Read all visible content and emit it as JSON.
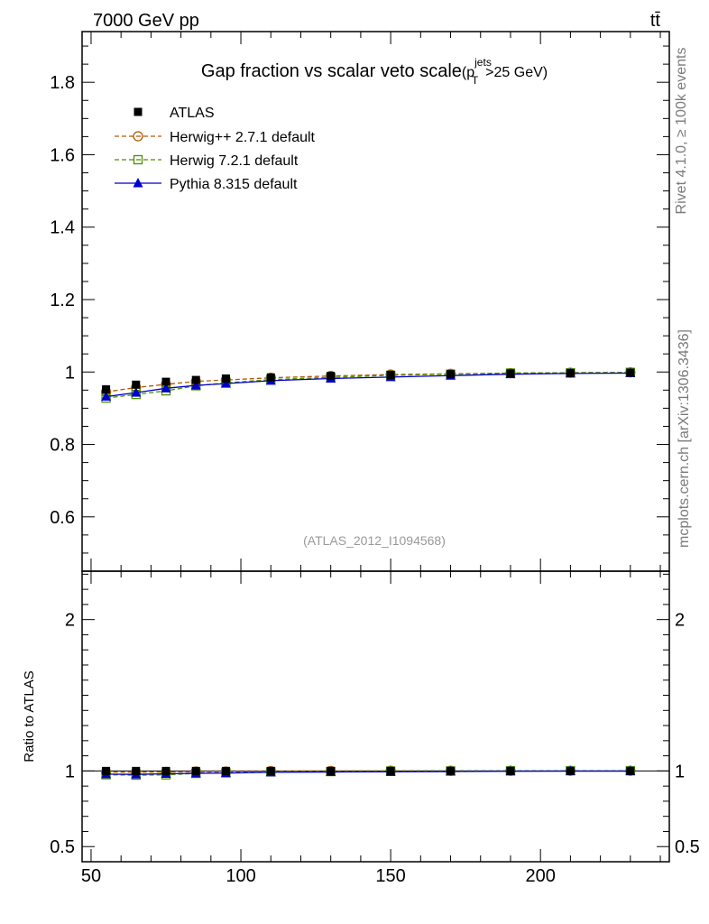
{
  "header": {
    "energy_label": "7000 GeV pp",
    "process_label": "tt̄"
  },
  "side_labels": {
    "rivet": "Rivet 4.1.0, ≥ 100k events",
    "mcplots": "mcplots.cern.ch [arXiv:1306.3436]"
  },
  "chart_data": {
    "type": "line",
    "title_main": "Gap fraction vs scalar veto scale",
    "title_formula": {
      "open": "(p",
      "sup": "jets",
      "sub": "T",
      "close": ">25 GeV)"
    },
    "analysis_label": "(ATLAS_2012_I1094568)",
    "ratio_ylabel": "Ratio to ATLAS",
    "x": [
      55,
      65,
      75,
      85,
      95,
      110,
      130,
      150,
      170,
      190,
      210,
      230
    ],
    "xlim": [
      47,
      243
    ],
    "main_ylim": [
      0.45,
      1.94
    ],
    "ratio_ylim": [
      0.4,
      2.32
    ],
    "main_yticks": [
      0.6,
      0.8,
      1.0,
      1.2,
      1.4,
      1.6,
      1.8
    ],
    "main_ytick_labels": [
      "0.6",
      "0.8",
      "1",
      "1.2",
      "1.4",
      "1.6",
      "1.8"
    ],
    "ratio_yticks": [
      0.5,
      1,
      2
    ],
    "ratio_ytick_labels": [
      "0.5",
      "1",
      "2"
    ],
    "xticks": [
      50,
      100,
      150,
      200
    ],
    "xtick_labels": [
      "50",
      "100",
      "150",
      "200"
    ],
    "series": [
      {
        "name": "ATLAS",
        "color": "#000000",
        "marker": "square-filled",
        "line": "none",
        "values": [
          0.952,
          0.965,
          0.973,
          0.978,
          0.982,
          0.985,
          0.989,
          0.992,
          0.994,
          0.996,
          0.997,
          0.998
        ]
      },
      {
        "name": "Herwig++ 2.7.1 default",
        "color": "#b35900",
        "marker": "circle-open",
        "line": "dashed",
        "values": [
          0.945,
          0.957,
          0.966,
          0.974,
          0.978,
          0.984,
          0.989,
          0.993,
          0.995,
          0.997,
          0.998,
          0.999
        ]
      },
      {
        "name": "Herwig 7.2.1 default",
        "color": "#4d8f00",
        "marker": "square-open",
        "line": "dashed",
        "values": [
          0.928,
          0.938,
          0.948,
          0.962,
          0.97,
          0.979,
          0.985,
          0.991,
          0.994,
          0.997,
          0.998,
          0.999
        ]
      },
      {
        "name": "Pythia 8.315 default",
        "color": "#0000cc",
        "marker": "triangle-filled",
        "line": "solid",
        "values": [
          0.932,
          0.943,
          0.955,
          0.963,
          0.968,
          0.976,
          0.982,
          0.986,
          0.99,
          0.994,
          0.996,
          0.997
        ]
      }
    ]
  }
}
